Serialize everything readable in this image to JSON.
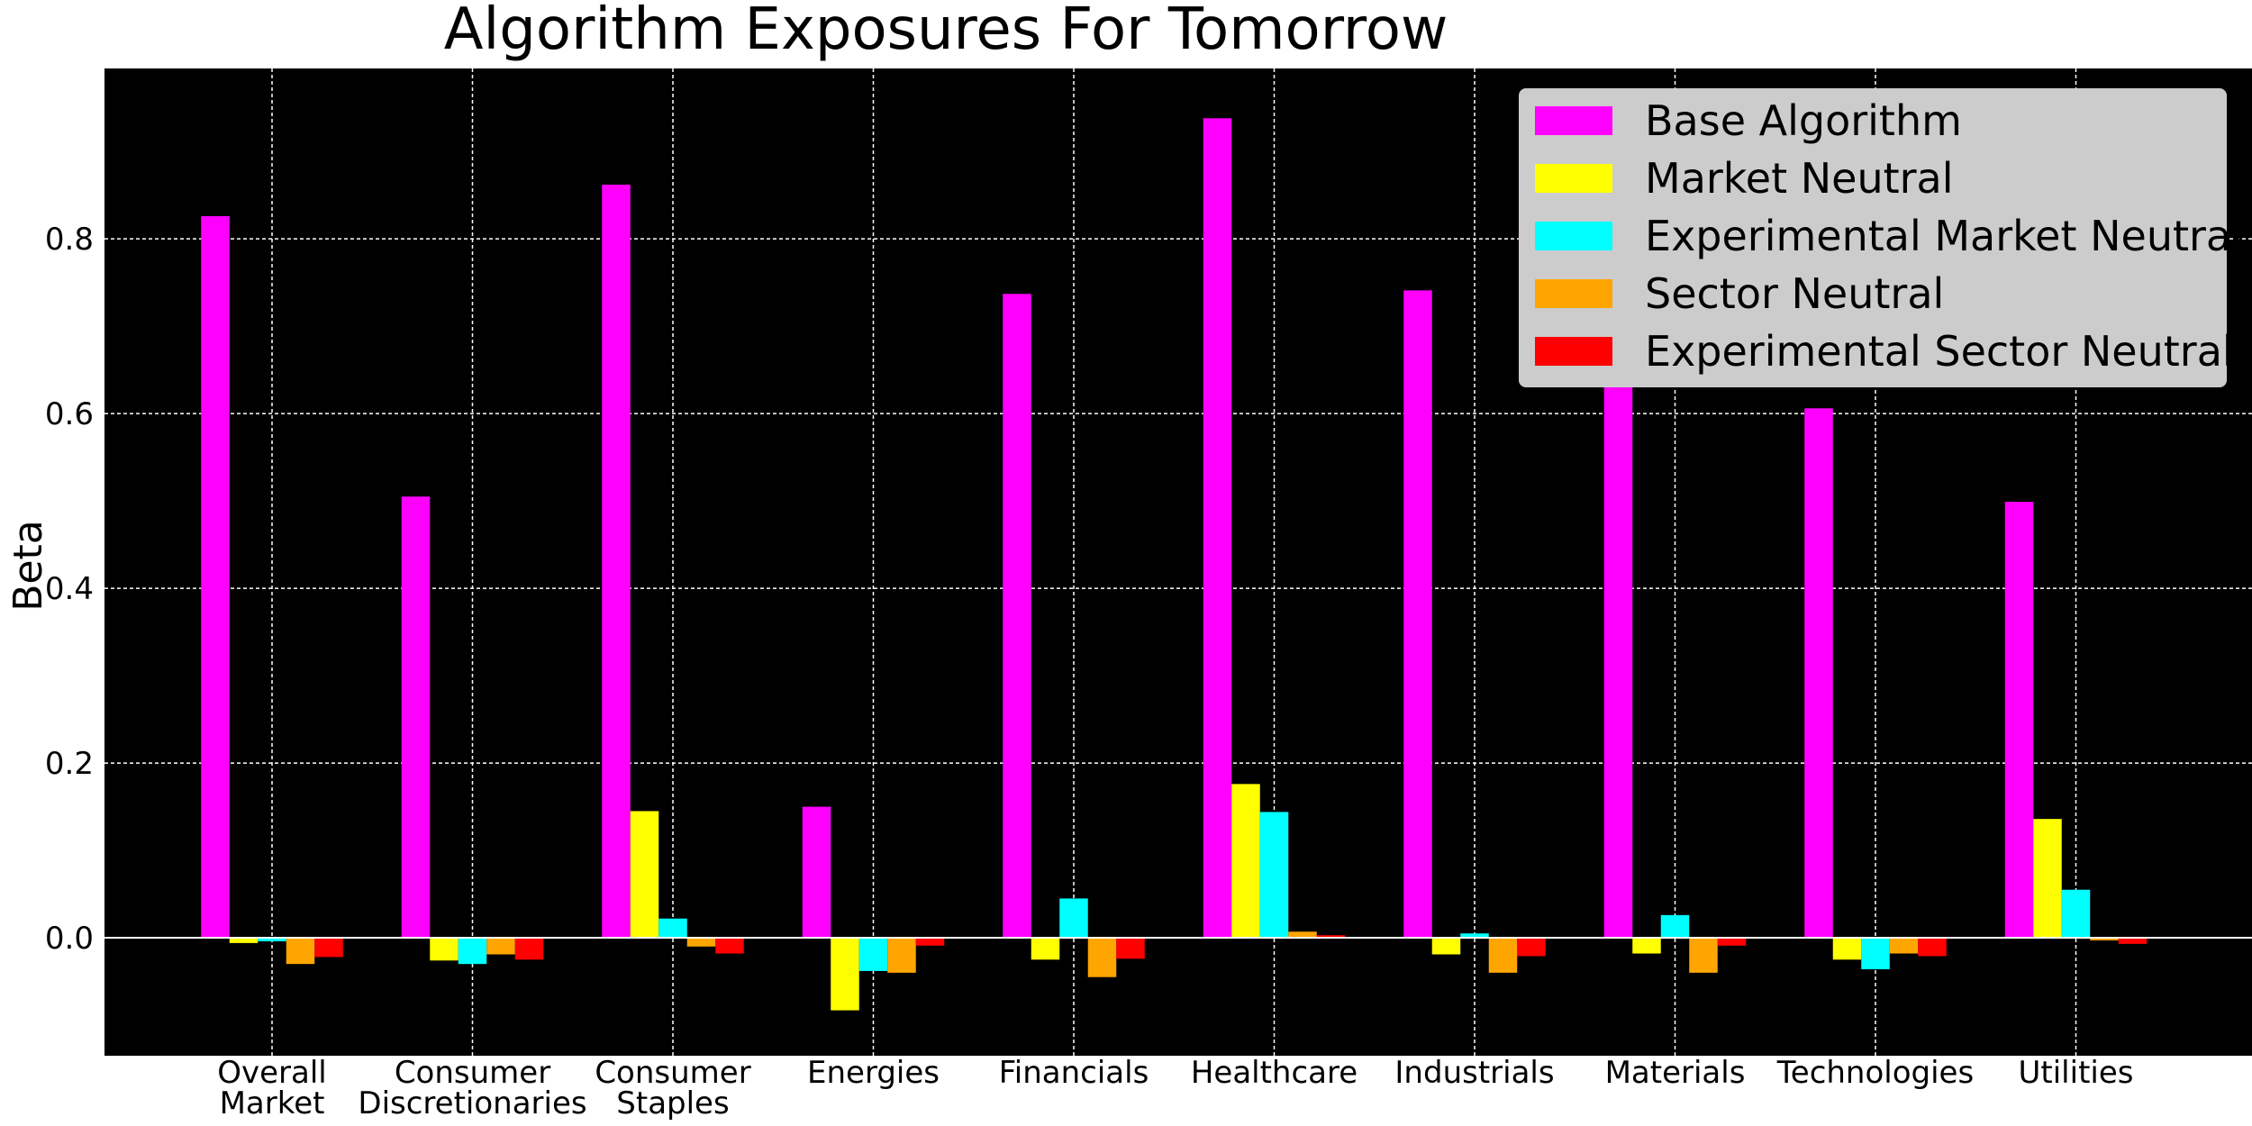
{
  "chart_data": {
    "type": "bar",
    "title": "Algorithm Exposures For Tomorrow",
    "xlabel": "",
    "ylabel": "Beta",
    "ylim": [
      -0.135,
      0.995
    ],
    "yticks": [
      "0.0",
      "0.2",
      "0.4",
      "0.6",
      "0.8"
    ],
    "grid": true,
    "legend_position": "top-right",
    "categories": [
      [
        "Overall",
        "Market"
      ],
      [
        "Consumer",
        "Discretionaries"
      ],
      [
        "Consumer",
        "Staples"
      ],
      [
        "Energies"
      ],
      [
        "Financials"
      ],
      [
        "Healthcare"
      ],
      [
        "Industrials"
      ],
      [
        "Materials"
      ],
      [
        "Technologies"
      ],
      [
        "Utilities"
      ]
    ],
    "series": [
      {
        "name": "Base Algorithm",
        "color": "#ff00ff",
        "values": [
          0.826,
          0.505,
          0.862,
          0.15,
          0.737,
          0.938,
          0.741,
          0.658,
          0.606,
          0.499
        ]
      },
      {
        "name": "Market Neutral",
        "color": "#ffff00",
        "values": [
          -0.006,
          -0.026,
          0.145,
          -0.083,
          -0.025,
          0.176,
          -0.019,
          -0.018,
          -0.025,
          0.136
        ]
      },
      {
        "name": "Experimental Market Neutral",
        "color": "#00ffff",
        "values": [
          -0.004,
          -0.03,
          0.022,
          -0.038,
          0.045,
          0.144,
          0.005,
          0.026,
          -0.036,
          0.055
        ]
      },
      {
        "name": "Sector Neutral",
        "color": "#ffa500",
        "values": [
          -0.03,
          -0.019,
          -0.01,
          -0.04,
          -0.045,
          0.007,
          -0.04,
          -0.04,
          -0.018,
          -0.003
        ]
      },
      {
        "name": "Experimental Sector Neutral",
        "color": "#ff0000",
        "values": [
          -0.022,
          -0.025,
          -0.018,
          -0.009,
          -0.024,
          0.003,
          -0.021,
          -0.009,
          -0.021,
          -0.007
        ]
      }
    ]
  }
}
